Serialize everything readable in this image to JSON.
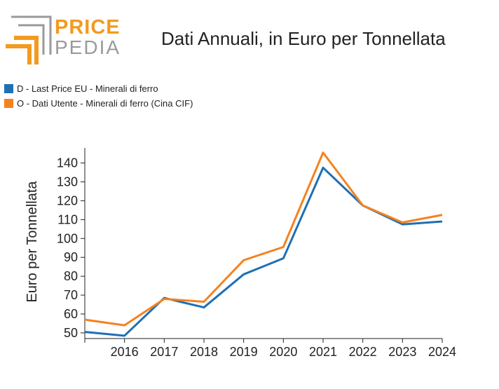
{
  "logo": {
    "text_top": "PRICE",
    "text_bottom": "PEDIA"
  },
  "colors": {
    "series_d": "#1f6fb4",
    "series_o": "#f5821f",
    "logo_orange": "#f39a1f",
    "logo_gray": "#9a9a9a"
  },
  "chart_data": {
    "type": "line",
    "title": "Dati Annuali, in Euro per Tonnellata",
    "ylabel": "Euro per Tonnellata",
    "xlabel": "",
    "x": [
      2015,
      2016,
      2017,
      2018,
      2019,
      2020,
      2021,
      2022,
      2023,
      2024
    ],
    "x_tick_labels": [
      "2016",
      "2017",
      "2018",
      "2019",
      "2020",
      "2021",
      "2022",
      "2023",
      "2024"
    ],
    "y_ticks": [
      50,
      60,
      70,
      80,
      90,
      100,
      110,
      120,
      130,
      140
    ],
    "xlim": [
      2015,
      2024
    ],
    "ylim": [
      47,
      148
    ],
    "grid": false,
    "legend_position": "top-left",
    "series": [
      {
        "name": "D - Last Price EU - Minerali di ferro",
        "color": "#1f6fb4",
        "values": [
          50.5,
          48.5,
          68.5,
          63.5,
          81.0,
          89.5,
          137.5,
          117.5,
          107.5,
          109.0
        ]
      },
      {
        "name": "O - Dati Utente - Minerali di ferro (Cina CIF)",
        "color": "#f5821f",
        "values": [
          57.0,
          54.0,
          68.0,
          66.5,
          88.5,
          95.5,
          145.5,
          117.5,
          108.5,
          112.5
        ]
      }
    ]
  }
}
